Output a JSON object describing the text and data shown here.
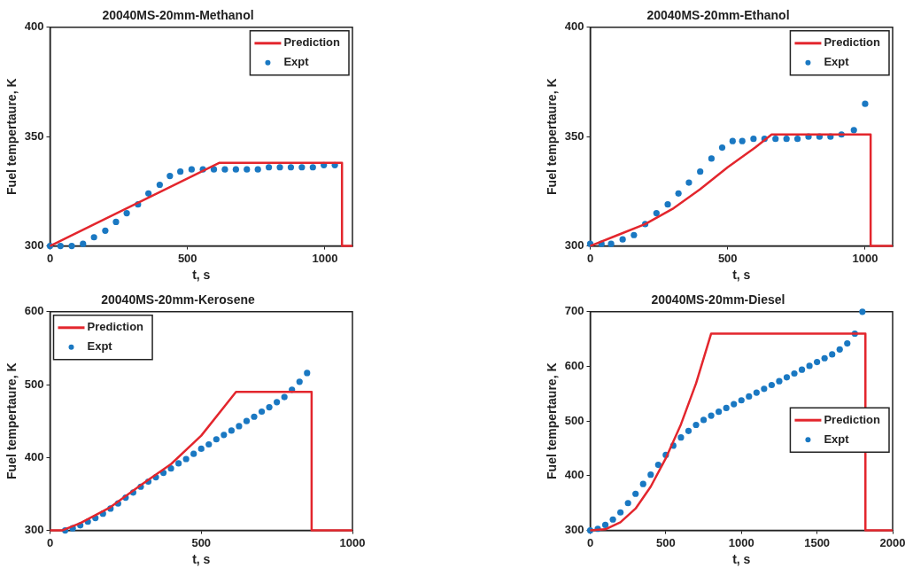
{
  "chart_data": [
    {
      "type": "line",
      "title": "20040MS-20mm-Methanol",
      "xlabel": "t, s",
      "ylabel": "Fuel tempertaure, K",
      "xlim": [
        0,
        1100
      ],
      "xticks": [
        0,
        500,
        1000
      ],
      "ylim": [
        300,
        400
      ],
      "yticks": [
        300,
        350,
        400
      ],
      "legend": "top right",
      "grid": false,
      "series": [
        {
          "name": "Prediction",
          "type": "line",
          "color": "#e3262d",
          "line_style": "solid",
          "x": [
            0,
            615,
            1062,
            1062,
            1100
          ],
          "values": [
            300,
            338,
            338,
            300,
            300
          ]
        },
        {
          "name": "Expt",
          "type": "scatter",
          "color": "#1a78c2",
          "marker": "circle",
          "x": [
            0,
            38,
            79,
            120,
            160,
            201,
            240,
            279,
            320,
            358,
            399,
            436,
            474,
            515,
            556,
            596,
            636,
            676,
            716,
            756,
            796,
            836,
            876,
            916,
            956,
            996,
            1036
          ],
          "values": [
            300,
            300,
            300,
            301,
            304,
            307,
            311,
            315,
            319,
            324,
            328,
            332,
            334,
            335,
            335,
            335,
            335,
            335,
            335,
            335,
            336,
            336,
            336,
            336,
            336,
            337,
            337
          ]
        }
      ]
    },
    {
      "type": "line",
      "title": "20040MS-20mm-Ethanol",
      "xlabel": "t, s",
      "ylabel": "Fuel tempertaure, K",
      "xlim": [
        0,
        1100
      ],
      "xticks": [
        0,
        500,
        1000
      ],
      "ylim": [
        300,
        400
      ],
      "yticks": [
        300,
        350,
        400
      ],
      "legend": "top right",
      "grid": false,
      "series": [
        {
          "name": "Prediction",
          "type": "line",
          "color": "#e3262d",
          "line_style": "solid",
          "x": [
            0,
            100,
            200,
            300,
            400,
            500,
            600,
            660,
            1020,
            1020,
            1100
          ],
          "values": [
            300,
            305,
            310,
            317,
            326,
            336,
            345,
            351,
            351,
            300,
            300
          ]
        },
        {
          "name": "Expt",
          "type": "scatter",
          "color": "#1a78c2",
          "marker": "circle",
          "x": [
            0,
            41,
            76,
            118,
            159,
            200,
            241,
            282,
            321,
            359,
            400,
            441,
            480,
            518,
            553,
            594,
            634,
            674,
            714,
            754,
            794,
            834,
            874,
            914,
            959,
            1000
          ],
          "values": [
            301,
            301,
            301,
            303,
            305,
            310,
            315,
            319,
            324,
            329,
            334,
            340,
            345,
            348,
            348,
            349,
            349,
            349,
            349,
            349,
            350,
            350,
            350,
            351,
            353,
            365
          ]
        }
      ]
    },
    {
      "type": "line",
      "title": "20040MS-20mm-Kerosene",
      "xlabel": "t, s",
      "ylabel": "Fuel tempertaure, K",
      "xlim": [
        0,
        1000
      ],
      "xticks": [
        0,
        500,
        1000
      ],
      "ylim": [
        300,
        600
      ],
      "yticks": [
        300,
        400,
        500,
        600
      ],
      "legend": "top left",
      "grid": false,
      "series": [
        {
          "name": "Prediction",
          "type": "line",
          "color": "#e3262d",
          "line_style": "solid",
          "x": [
            0,
            40,
            100,
            200,
            300,
            400,
            500,
            615,
            865,
            865,
            1000
          ],
          "values": [
            300,
            300,
            310,
            332,
            362,
            391,
            430,
            490,
            490,
            300,
            300
          ]
        },
        {
          "name": "Expt",
          "type": "scatter",
          "color": "#1a78c2",
          "marker": "circle",
          "x": [
            50,
            75,
            100,
            125,
            150,
            175,
            200,
            225,
            250,
            275,
            300,
            325,
            350,
            375,
            400,
            425,
            450,
            475,
            500,
            525,
            550,
            575,
            600,
            625,
            650,
            675,
            700,
            725,
            750,
            775,
            800,
            825,
            850
          ],
          "values": [
            300,
            303,
            307,
            312,
            317,
            323,
            330,
            337,
            345,
            352,
            360,
            367,
            373,
            379,
            385,
            392,
            398,
            405,
            412,
            418,
            425,
            431,
            437,
            443,
            450,
            456,
            463,
            469,
            476,
            483,
            493,
            504,
            516
          ]
        }
      ]
    },
    {
      "type": "line",
      "title": "20040MS-20mm-Diesel",
      "xlabel": "t, s",
      "ylabel": "Fuel tempertaure, K",
      "xlim": [
        0,
        2000
      ],
      "xticks": [
        0,
        500,
        1000,
        1500,
        2000
      ],
      "ylim": [
        300,
        700
      ],
      "yticks": [
        300,
        400,
        500,
        600,
        700
      ],
      "legend": "right",
      "grid": false,
      "series": [
        {
          "name": "Prediction",
          "type": "line",
          "color": "#e3262d",
          "line_style": "solid",
          "x": [
            0,
            100,
            200,
            300,
            400,
            500,
            600,
            700,
            800,
            1820,
            1820,
            2000
          ],
          "values": [
            300,
            302,
            315,
            340,
            380,
            432,
            494,
            569,
            660,
            660,
            300,
            300
          ]
        },
        {
          "name": "Expt",
          "type": "scatter",
          "color": "#1a78c2",
          "marker": "circle",
          "x": [
            0,
            50,
            100,
            150,
            200,
            250,
            300,
            350,
            400,
            450,
            500,
            550,
            600,
            650,
            700,
            750,
            800,
            850,
            900,
            950,
            1000,
            1050,
            1100,
            1150,
            1200,
            1250,
            1300,
            1350,
            1400,
            1450,
            1500,
            1550,
            1600,
            1650,
            1700,
            1750,
            1800
          ],
          "values": [
            300,
            303,
            310,
            320,
            333,
            350,
            367,
            385,
            402,
            420,
            438,
            455,
            470,
            482,
            493,
            502,
            510,
            517,
            524,
            531,
            538,
            545,
            552,
            559,
            566,
            573,
            580,
            587,
            594,
            601,
            608,
            615,
            622,
            631,
            642,
            660,
            700
          ]
        }
      ]
    }
  ]
}
